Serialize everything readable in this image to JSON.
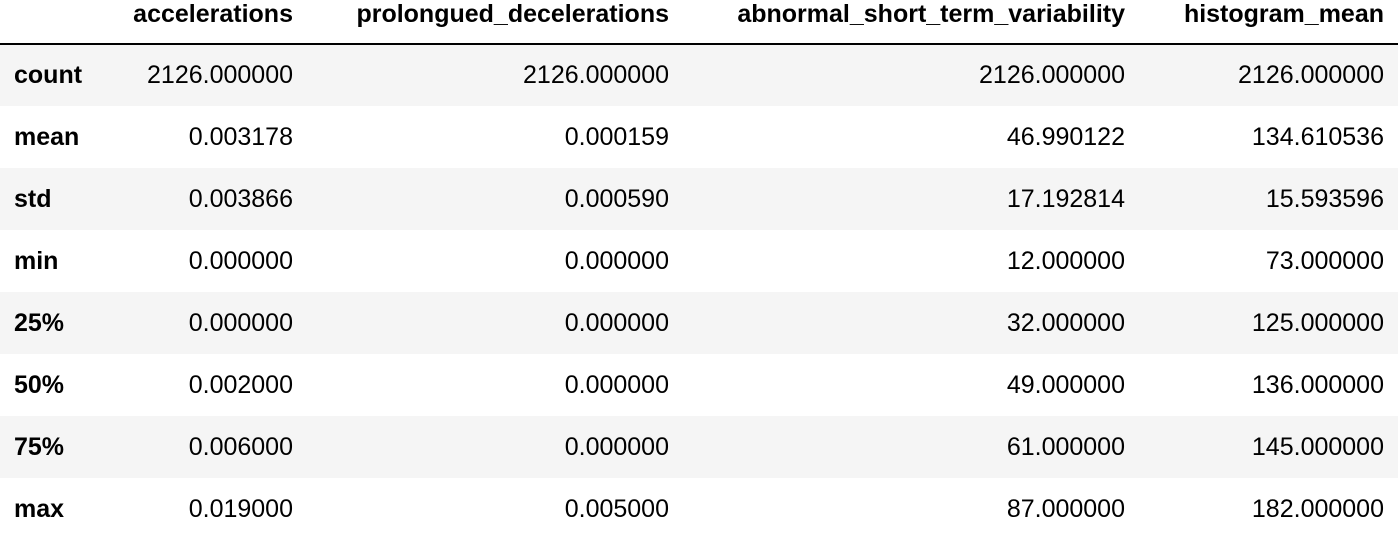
{
  "table": {
    "columns": [
      "accelerations",
      "prolongued_decelerations",
      "abnormal_short_term_variability",
      "histogram_mean"
    ],
    "rows": [
      {
        "label": "count",
        "values": [
          "2126.000000",
          "2126.000000",
          "2126.000000",
          "2126.000000"
        ]
      },
      {
        "label": "mean",
        "values": [
          "0.003178",
          "0.000159",
          "46.990122",
          "134.610536"
        ]
      },
      {
        "label": "std",
        "values": [
          "0.003866",
          "0.000590",
          "17.192814",
          "15.593596"
        ]
      },
      {
        "label": "min",
        "values": [
          "0.000000",
          "0.000000",
          "12.000000",
          "73.000000"
        ]
      },
      {
        "label": "25%",
        "values": [
          "0.000000",
          "0.000000",
          "32.000000",
          "125.000000"
        ]
      },
      {
        "label": "50%",
        "values": [
          "0.002000",
          "0.000000",
          "49.000000",
          "136.000000"
        ]
      },
      {
        "label": "75%",
        "values": [
          "0.006000",
          "0.000000",
          "61.000000",
          "145.000000"
        ]
      },
      {
        "label": "max",
        "values": [
          "0.019000",
          "0.005000",
          "87.000000",
          "182.000000"
        ]
      }
    ]
  }
}
